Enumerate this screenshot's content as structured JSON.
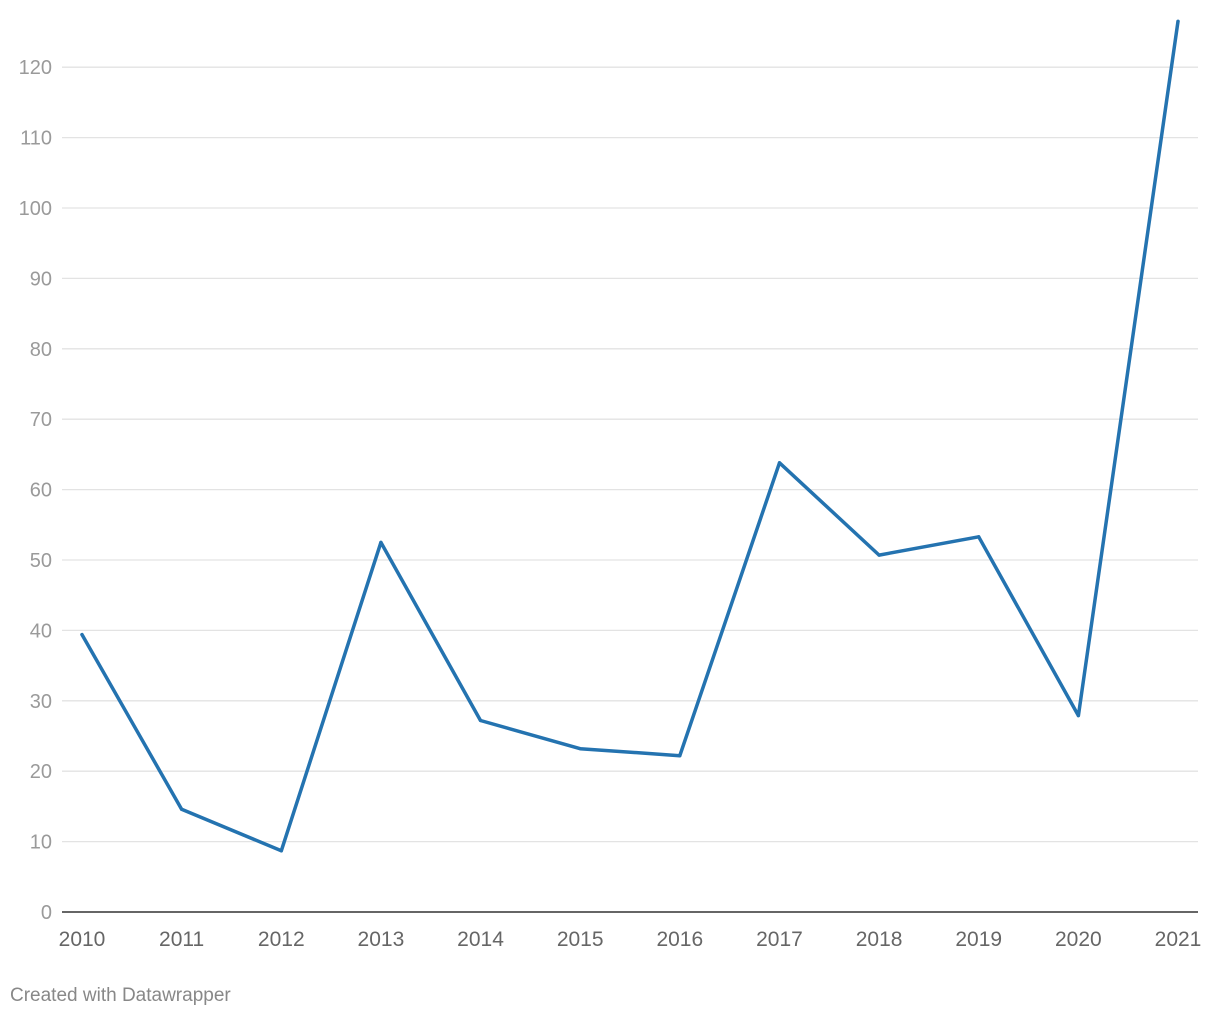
{
  "chart_data": {
    "type": "line",
    "title": "",
    "xlabel": "",
    "ylabel": "",
    "categories": [
      "2010",
      "2011",
      "2012",
      "2013",
      "2014",
      "2015",
      "2016",
      "2017",
      "2018",
      "2019",
      "2020",
      "2021"
    ],
    "series": [
      {
        "values": [
          39.4,
          14.6,
          8.7,
          52.5,
          27.2,
          23.2,
          22.2,
          63.8,
          50.7,
          53.3,
          27.9,
          126.5
        ]
      }
    ],
    "yticks": [
      0,
      10,
      20,
      30,
      40,
      50,
      60,
      70,
      80,
      90,
      100,
      110,
      120
    ],
    "ylim": [
      0,
      126.5
    ],
    "grid": true,
    "legend": "none",
    "colors": {
      "line": "#2473b0",
      "grid": "#e3e3e3",
      "axis": "#333333"
    }
  },
  "footer": {
    "credit": "Created with Datawrapper"
  }
}
